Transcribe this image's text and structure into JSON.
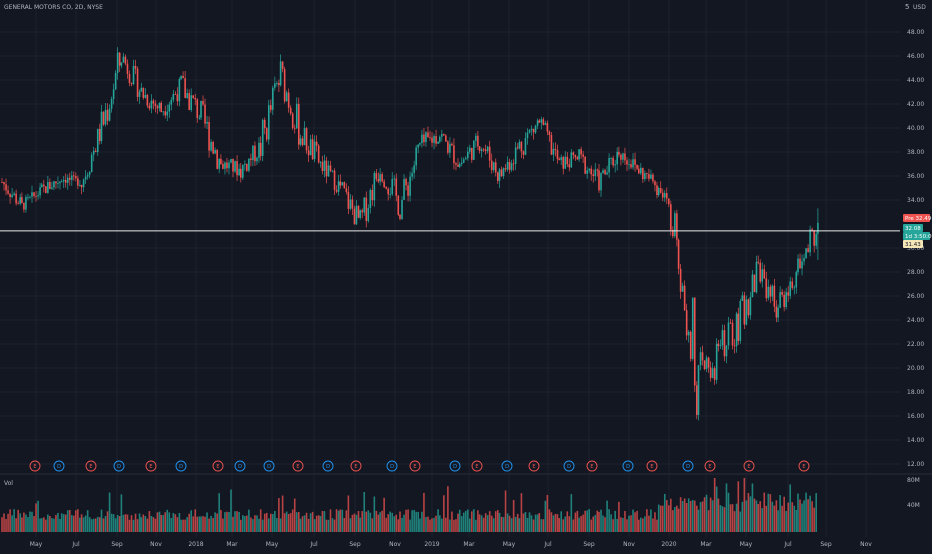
{
  "header": {
    "title": "GENERAL MOTORS CO, 2D, NYSE",
    "currency": "USD",
    "menu_glyph": "5"
  },
  "colors": {
    "up": "#26a69a",
    "down": "#ef5350",
    "bg": "#131722",
    "grid": "#1e222d",
    "hline": "#e8e8e8",
    "text": "#b2b5be",
    "dividend": "#2196f3",
    "earnings": "#ef5350"
  },
  "price_axis": {
    "ticks": [
      "48.00",
      "46.00",
      "44.00",
      "42.00",
      "40.00",
      "38.00",
      "36.00",
      "34.00",
      "30.00",
      "28.00",
      "26.00",
      "24.00",
      "22.00",
      "20.00",
      "18.00",
      "16.00",
      "14.00",
      "12.00"
    ]
  },
  "volume_axis": {
    "ticks": [
      "80M",
      "40M"
    ]
  },
  "volume_label": "Vol",
  "time_axis": {
    "labels": [
      "May",
      "Jul",
      "Sep",
      "Nov",
      "2018",
      "Mar",
      "May",
      "Jul",
      "Sep",
      "Nov",
      "2019",
      "Mar",
      "May",
      "Jul",
      "Sep",
      "Nov",
      "2020",
      "Mar",
      "May",
      "Jul",
      "Sep",
      "Nov"
    ]
  },
  "badges": {
    "prev": {
      "text": "Pre",
      "value": "32.49"
    },
    "last": {
      "value": "32.08"
    },
    "countdown": {
      "value": "1d 3:50:09"
    },
    "hline_value": {
      "value": "31.43"
    }
  },
  "horizontal_line": {
    "price": 31.43
  },
  "events": [
    "E",
    "D",
    "E",
    "D",
    "E",
    "D",
    "E",
    "D",
    "D",
    "E",
    "D",
    "E",
    "D",
    "E",
    "D",
    "E",
    "D",
    "E",
    "D",
    "E",
    "D",
    "E",
    "D",
    "E",
    "E",
    "E"
  ],
  "chart_data": {
    "type": "candlestick",
    "title": "GENERAL MOTORS CO, 2D, NYSE",
    "interval": "2D",
    "ylim": [
      12,
      50
    ],
    "ohlc_anchors": [
      {
        "date": "2017-04",
        "close": 35.5,
        "high": 36.5,
        "low": 35.0
      },
      {
        "date": "2017-05",
        "close": 33.5,
        "high": 34.5,
        "low": 32.5
      },
      {
        "date": "2017-06",
        "close": 34.8,
        "high": 35.5,
        "low": 33.0
      },
      {
        "date": "2017-07",
        "close": 35.8,
        "high": 36.5,
        "low": 34.6
      },
      {
        "date": "2017-08",
        "close": 35.5,
        "high": 36.2,
        "low": 34.8
      },
      {
        "date": "2017-09",
        "close": 40.0,
        "high": 41.5,
        "low": 37.0
      },
      {
        "date": "2017-10",
        "close": 46.0,
        "high": 47.0,
        "low": 43.5
      },
      {
        "date": "2017-11",
        "close": 43.0,
        "high": 46.0,
        "low": 41.0
      },
      {
        "date": "2017-12",
        "close": 41.5,
        "high": 43.5,
        "low": 40.5
      },
      {
        "date": "2018-01",
        "close": 43.5,
        "high": 45.5,
        "low": 41.5
      },
      {
        "date": "2018-02",
        "close": 41.0,
        "high": 44.0,
        "low": 38.5
      },
      {
        "date": "2018-03",
        "close": 37.0,
        "high": 39.0,
        "low": 36.0
      },
      {
        "date": "2018-04",
        "close": 36.5,
        "high": 38.5,
        "low": 35.0
      },
      {
        "date": "2018-05",
        "close": 38.5,
        "high": 40.0,
        "low": 36.0
      },
      {
        "date": "2018-06",
        "close": 44.5,
        "high": 46.5,
        "low": 38.0
      },
      {
        "date": "2018-07",
        "close": 39.5,
        "high": 42.0,
        "low": 37.5
      },
      {
        "date": "2018-08",
        "close": 37.0,
        "high": 38.0,
        "low": 35.0
      },
      {
        "date": "2018-09",
        "close": 35.0,
        "high": 37.0,
        "low": 33.5
      },
      {
        "date": "2018-10",
        "close": 32.0,
        "high": 34.5,
        "low": 30.6
      },
      {
        "date": "2018-11",
        "close": 37.0,
        "high": 38.0,
        "low": 33.5
      },
      {
        "date": "2018-12",
        "close": 33.5,
        "high": 38.5,
        "low": 31.2
      },
      {
        "date": "2019-01",
        "close": 38.5,
        "high": 39.5,
        "low": 35.5
      },
      {
        "date": "2019-02",
        "close": 39.5,
        "high": 40.5,
        "low": 38.0
      },
      {
        "date": "2019-03",
        "close": 37.0,
        "high": 41.5,
        "low": 36.5
      },
      {
        "date": "2019-04",
        "close": 39.0,
        "high": 40.0,
        "low": 37.5
      },
      {
        "date": "2019-05",
        "close": 36.0,
        "high": 39.0,
        "low": 34.0
      },
      {
        "date": "2019-06",
        "close": 38.5,
        "high": 39.5,
        "low": 35.0
      },
      {
        "date": "2019-07",
        "close": 40.5,
        "high": 41.8,
        "low": 38.0
      },
      {
        "date": "2019-08",
        "close": 37.0,
        "high": 40.0,
        "low": 36.0
      },
      {
        "date": "2019-09",
        "close": 37.5,
        "high": 39.0,
        "low": 36.0
      },
      {
        "date": "2019-10",
        "close": 35.5,
        "high": 37.5,
        "low": 34.0
      },
      {
        "date": "2019-11",
        "close": 38.0,
        "high": 39.0,
        "low": 35.5
      },
      {
        "date": "2019-12",
        "close": 36.5,
        "high": 37.5,
        "low": 35.5
      },
      {
        "date": "2020-01",
        "close": 35.0,
        "high": 37.0,
        "low": 33.0
      },
      {
        "date": "2020-02",
        "close": 31.0,
        "high": 35.5,
        "low": 30.0
      },
      {
        "date": "2020-03",
        "close": 18.5,
        "high": 29.0,
        "low": 14.3
      },
      {
        "date": "2020-04",
        "close": 21.5,
        "high": 24.0,
        "low": 17.0
      },
      {
        "date": "2020-05",
        "close": 23.5,
        "high": 25.0,
        "low": 20.5
      },
      {
        "date": "2020-06",
        "close": 28.5,
        "high": 31.0,
        "low": 24.5
      },
      {
        "date": "2020-07",
        "close": 25.0,
        "high": 27.5,
        "low": 23.5
      },
      {
        "date": "2020-08",
        "close": 28.0,
        "high": 30.0,
        "low": 26.0
      },
      {
        "date": "2020-09",
        "close": 32.1,
        "high": 33.3,
        "low": 29.0
      }
    ],
    "volume_ylim": [
      0,
      80
    ],
    "volume_unit": "M"
  }
}
